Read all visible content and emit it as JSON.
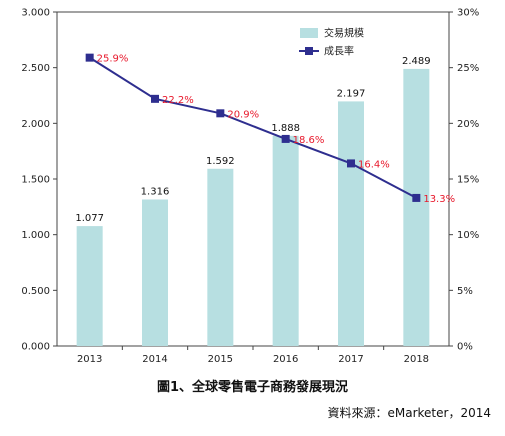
{
  "chart_data": {
    "type": "bar",
    "categories": [
      "2013",
      "2014",
      "2015",
      "2016",
      "2017",
      "2018"
    ],
    "series": [
      {
        "name": "交易規模",
        "type": "bar",
        "axis": "left",
        "values": [
          1.077,
          1.316,
          1.592,
          1.888,
          2.197,
          2.489
        ],
        "labels": [
          "1.077",
          "1.316",
          "1.592",
          "1.888",
          "2.197",
          "2.489"
        ],
        "color": "#b7dfe1"
      },
      {
        "name": "成長率",
        "type": "line",
        "axis": "right",
        "values": [
          25.9,
          22.2,
          20.9,
          18.6,
          16.4,
          13.3
        ],
        "labels": [
          "25.9%",
          "22.2%",
          "20.9%",
          "18.6%",
          "16.4%",
          "13.3%"
        ],
        "color": "#2e2e8f",
        "label_color": "#e8192c"
      }
    ],
    "y_left": {
      "ylim": [
        0,
        3
      ],
      "ticks": [
        "0.000",
        "0.500",
        "1.000",
        "1.500",
        "2.000",
        "2.500",
        "3.000"
      ]
    },
    "y_right": {
      "ylim": [
        0,
        30
      ],
      "ticks": [
        "0%",
        "5%",
        "10%",
        "15%",
        "20%",
        "25%",
        "30%"
      ]
    },
    "grid": false,
    "legend_position": "top-right"
  },
  "caption": "圖1、全球零售電子商務發展現況",
  "source": "資料來源：eMarketer，2014"
}
